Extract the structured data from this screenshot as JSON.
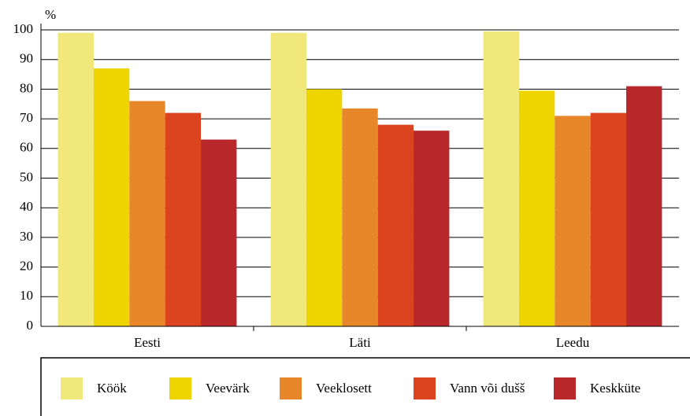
{
  "chart_data": {
    "type": "bar",
    "y_label": "%",
    "categories": [
      "Eesti",
      "Läti",
      "Leedu"
    ],
    "series": [
      {
        "name": "Köök",
        "color": "#f0e87a",
        "values": [
          99,
          99,
          99.5
        ]
      },
      {
        "name": "Veevärk",
        "color": "#efd500",
        "values": [
          87,
          80,
          79.5
        ]
      },
      {
        "name": "Veeklosett",
        "color": "#e8872a",
        "values": [
          76,
          73.5,
          71
        ]
      },
      {
        "name": "Vann või dušš",
        "color": "#dc4420",
        "values": [
          72,
          68,
          72
        ]
      },
      {
        "name": "Keskküte",
        "color": "#b8272a",
        "values": [
          63,
          66,
          81
        ]
      }
    ],
    "ylim": [
      0,
      100
    ],
    "yticks": [
      0,
      10,
      20,
      30,
      40,
      50,
      60,
      70,
      80,
      90,
      100
    ],
    "grid": true,
    "legend": "bottom"
  }
}
